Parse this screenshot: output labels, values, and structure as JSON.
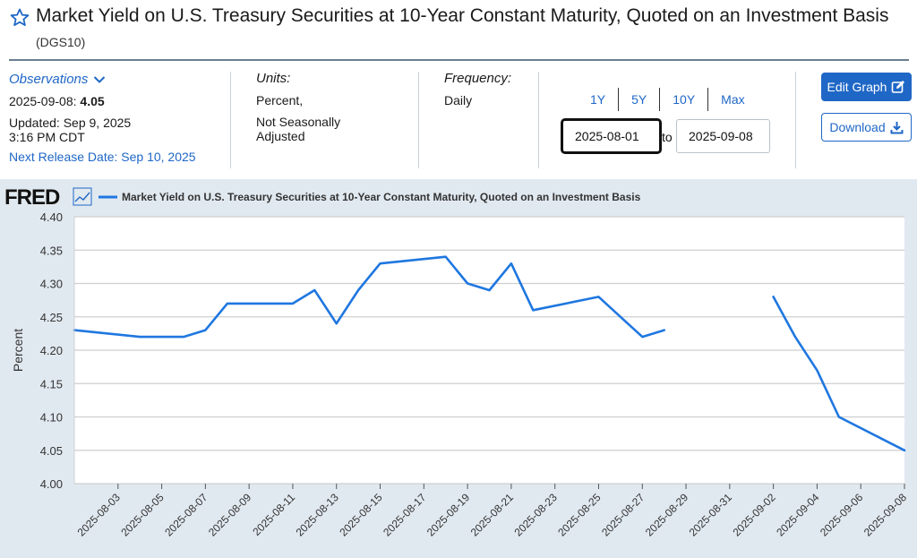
{
  "page": {
    "title": "Market Yield on U.S. Treasury Securities at 10-Year Constant Maturity, Quoted on an Investment Basis",
    "series_id": "(DGS10)"
  },
  "observations": {
    "label": "Observations",
    "date": "2025-09-08:",
    "value": "4.05",
    "updated_line1": "Updated: Sep 9, 2025",
    "updated_line2": "3:16 PM CDT",
    "next_release": "Next Release Date: Sep 10, 2025"
  },
  "units": {
    "label": "Units:",
    "line1": "Percent,",
    "line2": "Not Seasonally",
    "line3": "Adjusted"
  },
  "frequency": {
    "label": "Frequency:",
    "value": "Daily"
  },
  "range_tabs": [
    "1Y",
    "5Y",
    "10Y",
    "Max"
  ],
  "date_range": {
    "start": "2025-08-01",
    "to_label": "to",
    "end": "2025-09-08"
  },
  "buttons": {
    "edit_graph": "Edit Graph",
    "download": "Download"
  },
  "colors": {
    "accent": "#1f67c6",
    "line": "#1f77e0",
    "chart_bg": "#e1e9f0"
  },
  "chart_data": {
    "type": "line",
    "brand": "FRED",
    "legend": "Market Yield on U.S. Treasury Securities at 10-Year Constant Maturity, Quoted on an Investment Basis",
    "ylabel": "Percent",
    "ylim": [
      4.0,
      4.4
    ],
    "yticks": [
      "4.40",
      "4.35",
      "4.30",
      "4.25",
      "4.20",
      "4.15",
      "4.10",
      "4.05",
      "4.00"
    ],
    "xlim": [
      "2025-08-01",
      "2025-09-08"
    ],
    "xticks": [
      "2025-08-03",
      "2025-08-05",
      "2025-08-07",
      "2025-08-09",
      "2025-08-11",
      "2025-08-13",
      "2025-08-15",
      "2025-08-17",
      "2025-08-19",
      "2025-08-21",
      "2025-08-23",
      "2025-08-25",
      "2025-08-27",
      "2025-08-29",
      "2025-08-31",
      "2025-09-02",
      "2025-09-04",
      "2025-09-06",
      "2025-09-08"
    ],
    "grid": true,
    "series": [
      {
        "points": [
          [
            "2025-08-01",
            4.23
          ],
          [
            "2025-08-04",
            4.22
          ],
          [
            "2025-08-05",
            4.22
          ],
          [
            "2025-08-06",
            4.22
          ],
          [
            "2025-08-07",
            4.23
          ],
          [
            "2025-08-08",
            4.27
          ],
          [
            "2025-08-11",
            4.27
          ],
          [
            "2025-08-12",
            4.29
          ],
          [
            "2025-08-13",
            4.24
          ],
          [
            "2025-08-14",
            4.29
          ],
          [
            "2025-08-15",
            4.33
          ],
          [
            "2025-08-18",
            4.34
          ],
          [
            "2025-08-19",
            4.3
          ],
          [
            "2025-08-20",
            4.29
          ],
          [
            "2025-08-21",
            4.33
          ],
          [
            "2025-08-22",
            4.26
          ],
          [
            "2025-08-25",
            4.28
          ],
          [
            "2025-08-26",
            4.25
          ],
          [
            "2025-08-27",
            4.22
          ],
          [
            "2025-08-28",
            4.23
          ],
          [
            "2025-08-29",
            null
          ],
          [
            "2025-09-02",
            4.28
          ],
          [
            "2025-09-03",
            4.22
          ],
          [
            "2025-09-04",
            4.17
          ],
          [
            "2025-09-05",
            4.1
          ],
          [
            "2025-09-08",
            4.05
          ]
        ]
      }
    ]
  }
}
